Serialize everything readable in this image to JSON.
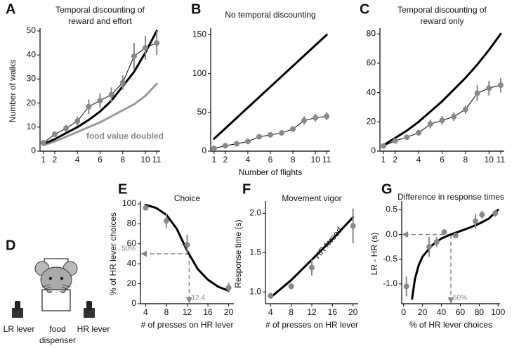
{
  "chart_data": [
    {
      "type": "line",
      "label": "A",
      "title": [
        "Temporal discounting of",
        "reward and effort"
      ],
      "y_label": "Number of walks",
      "xlim": [
        0.7,
        11.3
      ],
      "ylim": [
        0,
        50
      ],
      "xticks": [
        1,
        2,
        4,
        6,
        8,
        10,
        11
      ],
      "yticks": [
        0,
        10,
        20,
        30,
        40,
        50
      ],
      "series": [
        {
          "style": "curve",
          "color": "#999999",
          "x": [
            1,
            2,
            3,
            4,
            5,
            6,
            7,
            8,
            9,
            10,
            11
          ],
          "values": [
            2.5,
            4,
            6,
            8,
            10,
            12,
            14.5,
            17,
            19.5,
            23,
            28
          ]
        },
        {
          "style": "curve",
          "color": "#000000",
          "x": [
            1,
            2,
            3,
            4,
            5,
            6,
            7,
            8,
            9,
            10,
            11
          ],
          "values": [
            3,
            5,
            7.5,
            10,
            13,
            16.5,
            21,
            27,
            33,
            41,
            50
          ]
        },
        {
          "style": "points",
          "connect": true,
          "color": "#888888",
          "x": [
            1,
            2,
            3,
            4,
            5,
            6,
            7,
            8,
            9,
            10,
            11
          ],
          "values": [
            3.5,
            7,
            9.5,
            12.5,
            18.5,
            21,
            23.5,
            28.5,
            39.5,
            43,
            45
          ],
          "errors": [
            1,
            1,
            1.5,
            2,
            3,
            3,
            3,
            3,
            5.5,
            5,
            5
          ]
        }
      ],
      "annotations": [
        "food value doubled"
      ]
    },
    {
      "type": "line",
      "label": "B",
      "title": [
        "No temporal discounting"
      ],
      "x_label": "Number of flights",
      "xlim": [
        0.7,
        11.3
      ],
      "ylim": [
        0,
        155
      ],
      "xticks": [
        1,
        2,
        4,
        6,
        8,
        10,
        11
      ],
      "yticks": [
        0,
        50,
        100,
        150
      ],
      "series": [
        {
          "style": "curve",
          "color": "#000000",
          "x": [
            1,
            11
          ],
          "values": [
            16,
            150
          ]
        },
        {
          "style": "points",
          "connect": true,
          "color": "#888888",
          "x": [
            1,
            2,
            3,
            4,
            5,
            6,
            7,
            8,
            9,
            10,
            11
          ],
          "values": [
            3.5,
            7,
            9.5,
            12.5,
            18.5,
            21,
            23.5,
            28.5,
            39.5,
            43,
            45
          ],
          "errors": [
            1,
            1,
            1.5,
            2,
            3,
            3,
            3,
            3,
            5.5,
            5,
            5
          ]
        }
      ]
    },
    {
      "type": "line",
      "label": "C",
      "title": [
        "Temporal discounting of",
        "reward only"
      ],
      "xlim": [
        0.7,
        11.3
      ],
      "ylim": [
        0,
        82
      ],
      "xticks": [
        1,
        2,
        4,
        6,
        8,
        10,
        11
      ],
      "yticks": [
        0,
        20,
        40,
        60,
        80
      ],
      "series": [
        {
          "style": "curve",
          "color": "#000000",
          "x": [
            1,
            2,
            3,
            4,
            5,
            6,
            7,
            8,
            9,
            10,
            11
          ],
          "values": [
            4,
            9,
            14,
            20,
            27,
            34,
            42,
            50,
            59,
            69,
            80
          ]
        },
        {
          "style": "points",
          "connect": true,
          "color": "#888888",
          "x": [
            1,
            2,
            3,
            4,
            5,
            6,
            7,
            8,
            9,
            10,
            11
          ],
          "values": [
            3.5,
            7,
            9.5,
            12.5,
            18.5,
            21,
            23.5,
            28.5,
            39.5,
            43,
            45
          ],
          "errors": [
            1,
            1,
            1.5,
            2,
            3,
            3,
            3,
            3,
            5.5,
            5,
            5
          ]
        }
      ]
    },
    {
      "type": "line",
      "label": "E",
      "title": [
        "Choice"
      ],
      "x_label": "# of presses on HR lever",
      "y_label": "% of HR lever choices",
      "xlim": [
        3,
        21
      ],
      "ylim": [
        0,
        100
      ],
      "xticks": [
        4,
        8,
        12,
        16,
        20
      ],
      "yticks": [
        0,
        20,
        40,
        60,
        80,
        100
      ],
      "series": [
        {
          "style": "curve",
          "color": "#000000",
          "x": [
            4,
            6,
            8,
            10,
            12,
            14,
            16,
            18,
            20
          ],
          "values": [
            99,
            96,
            89,
            75,
            53,
            35,
            24,
            17,
            13
          ]
        },
        {
          "style": "points",
          "color": "#888888",
          "x": [
            4,
            8,
            12,
            20
          ],
          "values": [
            96,
            83,
            59,
            16
          ],
          "errors": [
            2,
            7,
            10,
            5
          ]
        }
      ],
      "reference": {
        "x": 12.4,
        "y": {
          "value": 50,
          "label": "50%"
        }
      }
    },
    {
      "type": "line",
      "label": "F",
      "title": [
        "Movement vigor"
      ],
      "x_label": "# of presses on HR lever",
      "y_label": "Response time (s)",
      "xlim": [
        3,
        21
      ],
      "ylim": [
        0.85,
        2.12
      ],
      "xticks": [
        4,
        8,
        12,
        16,
        20
      ],
      "yticks": [
        {
          "value": 1,
          "label": "1.0"
        },
        {
          "value": 1.5,
          "label": "1.5"
        },
        {
          "value": 2,
          "label": "2.0"
        }
      ],
      "series": [
        {
          "style": "curve",
          "color": "#000000",
          "x": [
            4,
            8,
            12,
            16,
            20
          ],
          "values": [
            0.93,
            1.15,
            1.41,
            1.67,
            1.95
          ]
        },
        {
          "style": "points",
          "color": "#888888",
          "x": [
            4,
            8,
            12,
            20
          ],
          "values": [
            0.95,
            1.07,
            1.31,
            1.84
          ],
          "errors": [
            0.04,
            0.04,
            0.1,
            0.22
          ]
        }
      ],
      "annotations": [
        "HR forced"
      ]
    },
    {
      "type": "line",
      "label": "G",
      "title": [
        "Difference in response times"
      ],
      "x_label": "% of HR lever choices",
      "y_label": "LR - HR (s)",
      "xlim": [
        -2,
        102
      ],
      "ylim": [
        -1.4,
        0.62
      ],
      "xticks": [
        0,
        20,
        40,
        60,
        80,
        100
      ],
      "yticks": [
        {
          "value": -1,
          "label": "-1.0"
        },
        {
          "value": -0.5,
          "label": "-0.5"
        },
        {
          "value": 0,
          "label": "0.0"
        },
        {
          "value": 0.5,
          "label": "0.5"
        }
      ],
      "series": [
        {
          "style": "curve",
          "color": "#000000",
          "x": [
            9,
            12,
            16,
            20,
            30,
            40,
            50,
            60,
            70,
            80,
            90,
            100
          ],
          "values": [
            -1.3,
            -0.9,
            -0.62,
            -0.45,
            -0.22,
            -0.08,
            0,
            0.07,
            0.14,
            0.22,
            0.32,
            0.5
          ]
        },
        {
          "style": "points",
          "color": "#888888",
          "x": [
            3,
            27,
            35,
            43,
            55,
            76,
            83,
            97
          ],
          "values": [
            -1.05,
            -0.25,
            -0.15,
            0.05,
            -0.02,
            0.27,
            0.4,
            0.43
          ],
          "errors": [
            0.2,
            0.2,
            0.1,
            0.04,
            0.04,
            0.15,
            0.08,
            0.07
          ]
        }
      ],
      "reference": {
        "x": {
          "value": 50,
          "label": "50%"
        },
        "y": 0
      }
    }
  ],
  "diagram": {
    "label": "D",
    "lr_lever": "LR lever",
    "dispenser": [
      "food",
      "dispenser"
    ],
    "hr_lever": "HR lever"
  }
}
